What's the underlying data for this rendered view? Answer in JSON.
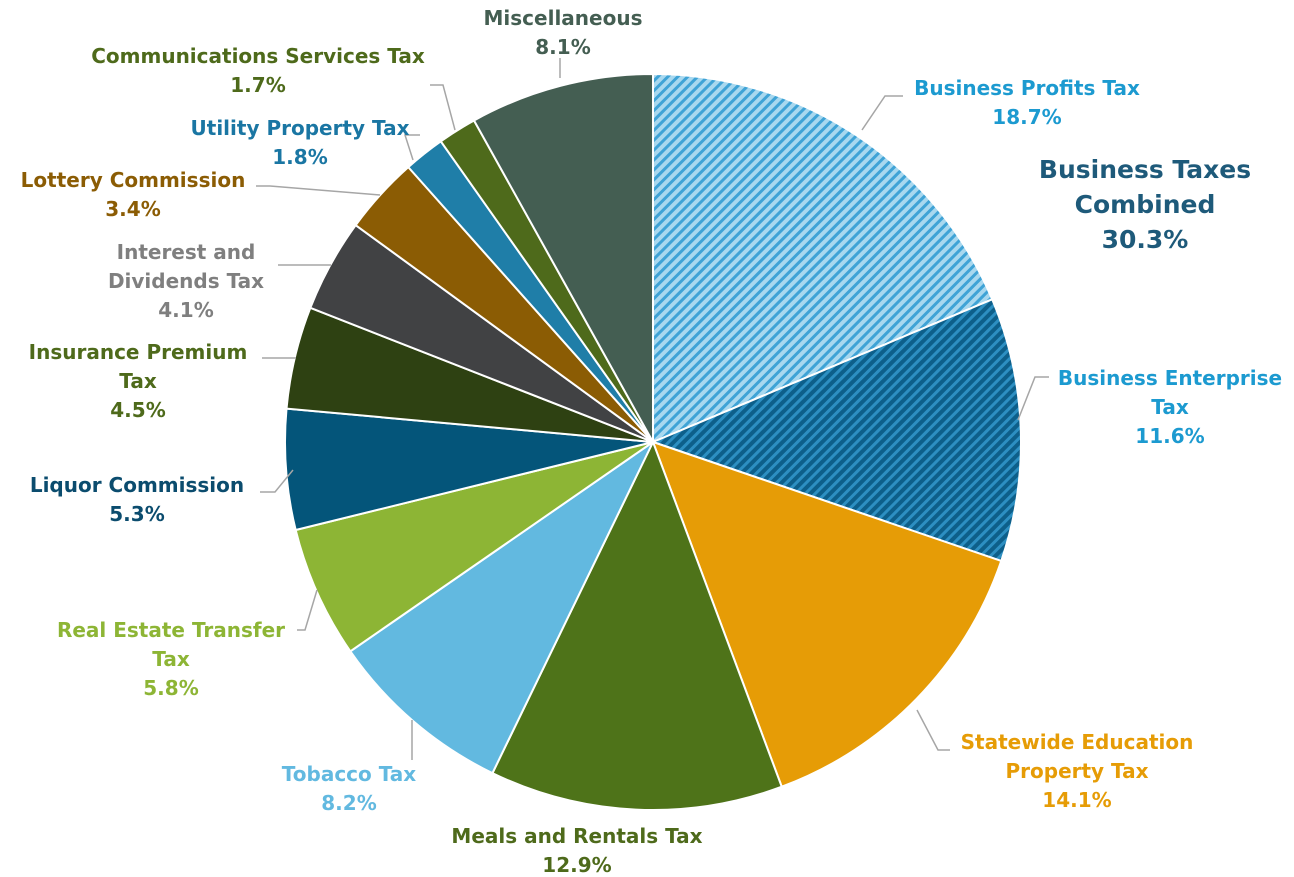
{
  "chart_data": {
    "type": "pie",
    "slices": [
      {
        "label": "Business Profits Tax",
        "value": 18.7,
        "value_label": "18.7%",
        "color": "#8ecae6",
        "label_color": "#1c9ad0",
        "pattern": "light-hatch"
      },
      {
        "label": "Business Enterprise Tax",
        "value": 11.6,
        "value_label": "11.6%",
        "color": "#1f78a8",
        "label_color": "#1c9ad0",
        "pattern": "dark-hatch"
      },
      {
        "label": "Statewide Education Property Tax",
        "value": 14.1,
        "value_label": "14.1%",
        "color": "#e69c06",
        "label_color": "#e69c06"
      },
      {
        "label": "Meals and Rentals Tax",
        "value": 12.9,
        "value_label": "12.9%",
        "color": "#4e7319",
        "label_color": "#4e6a1b"
      },
      {
        "label": "Tobacco Tax",
        "value": 8.2,
        "value_label": "8.2%",
        "color": "#62b9e0",
        "label_color": "#62b9e0"
      },
      {
        "label": "Real Estate Transfer Tax",
        "value": 5.8,
        "value_label": "5.8%",
        "color": "#8db535",
        "label_color": "#8db535"
      },
      {
        "label": "Liquor Commission",
        "value": 5.3,
        "value_label": "5.3%",
        "color": "#04557a",
        "label_color": "#0b4c6e"
      },
      {
        "label": "Insurance Premium Tax",
        "value": 4.5,
        "value_label": "4.5%",
        "color": "#2e4112",
        "label_color": "#4e6a1b"
      },
      {
        "label": "Interest and Dividends Tax",
        "value": 4.1,
        "value_label": "4.1%",
        "color": "#414244",
        "label_color": "#7f7f7f"
      },
      {
        "label": "Lottery Commission",
        "value": 3.4,
        "value_label": "3.4%",
        "color": "#8b5c04",
        "label_color": "#8b5c04"
      },
      {
        "label": "Utility Property Tax",
        "value": 1.8,
        "value_label": "1.8%",
        "color": "#1f7ea8",
        "label_color": "#1a76a3"
      },
      {
        "label": "Communications Services Tax",
        "value": 1.7,
        "value_label": "1.7%",
        "color": "#4e6a1b",
        "label_color": "#4e6a1b"
      },
      {
        "label": "Miscellaneous",
        "value": 8.1,
        "value_label": "8.1%",
        "color": "#445e52",
        "label_color": "#445e52"
      }
    ],
    "annotation": {
      "lines": [
        "Business Taxes",
        "Combined",
        "30.3%"
      ],
      "color": "#1e5a7a"
    },
    "start_angle_deg": 0,
    "direction": "clockwise"
  }
}
